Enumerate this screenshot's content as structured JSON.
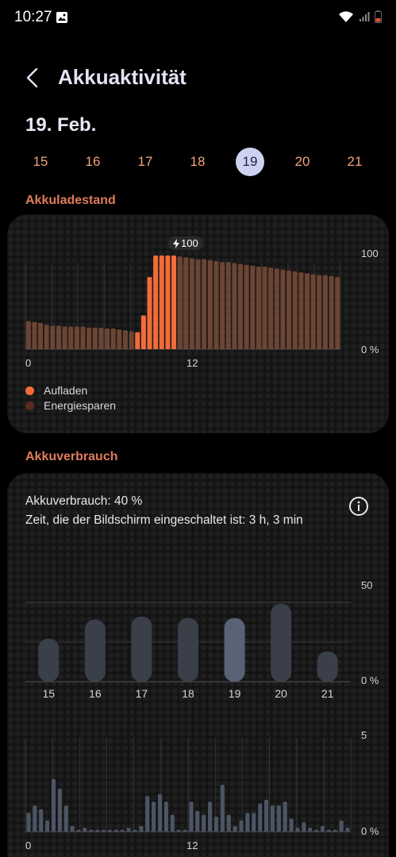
{
  "status": {
    "time": "10:27"
  },
  "header": {
    "title": "Akkuaktivität"
  },
  "date_title": "19. Feb.",
  "days": [
    {
      "label": "15",
      "selected": false
    },
    {
      "label": "16",
      "selected": false
    },
    {
      "label": "17",
      "selected": false
    },
    {
      "label": "18",
      "selected": false
    },
    {
      "label": "19",
      "selected": true
    },
    {
      "label": "20",
      "selected": false
    },
    {
      "label": "21",
      "selected": false
    }
  ],
  "battery_level": {
    "section_label": "Akkuladestand",
    "peak_badge": "100",
    "y_tick_top": "100",
    "y_tick_bottom": "0 %",
    "x_tick_start": "0",
    "x_tick_mid": "12",
    "legend": [
      {
        "label": "Aufladen",
        "color": "#f26b3a"
      },
      {
        "label": "Energiesparen",
        "color": "#5a2a22"
      }
    ]
  },
  "usage": {
    "section_label": "Akkuverbrauch",
    "usage_text": "Akkuverbrauch: 40 %",
    "screen_time_text": "Zeit, die der Bildschirm eingeschaltet ist: 3 h, 3 min",
    "y_tick_top": "50",
    "y_tick_bottom": "0 %",
    "hourly_y_tick_top": "5",
    "hourly_y_tick_bottom": "0 %",
    "hourly_x_tick_start": "0",
    "hourly_x_tick_mid": "12"
  },
  "chart_data": [
    {
      "type": "bar",
      "title": "Akkuladestand",
      "xlabel": "",
      "ylabel": "",
      "ylim": [
        0,
        100
      ],
      "x_ticks": [
        "0",
        "12"
      ],
      "series": [
        {
          "name": "Akkuladestand",
          "values": [
            30,
            29,
            28,
            26,
            25,
            25,
            24,
            24,
            24,
            24,
            23,
            23,
            23,
            22,
            22,
            21,
            20,
            19,
            18,
            36,
            77,
            100,
            100,
            100,
            100,
            99,
            98,
            97,
            96,
            96,
            95,
            94,
            93,
            93,
            92,
            91,
            90,
            89,
            88,
            88,
            87,
            86,
            85,
            84,
            83,
            82,
            81,
            80,
            79,
            79,
            78,
            77
          ]
        }
      ],
      "charging_range": [
        18,
        24
      ]
    },
    {
      "type": "bar",
      "title": "Akkuverbrauch",
      "xlabel": "",
      "ylabel": "",
      "ylim": [
        0,
        60
      ],
      "categories": [
        "15",
        "16",
        "17",
        "18",
        "19",
        "20",
        "21"
      ],
      "values": [
        27,
        39,
        41,
        40,
        40,
        49,
        19
      ],
      "highlight_index": 4
    },
    {
      "type": "bar",
      "title": "",
      "xlabel": "",
      "ylabel": "",
      "ylim": [
        0,
        5
      ],
      "x_ticks": [
        "0",
        "12"
      ],
      "values": [
        1.0,
        1.4,
        1.2,
        0.6,
        2.8,
        2.3,
        1.4,
        0.3,
        0.1,
        0.2,
        0.1,
        0.1,
        0.1,
        0.1,
        0.1,
        0.1,
        0.2,
        0.1,
        0.3,
        1.9,
        1.6,
        2.0,
        1.6,
        0.9,
        0.1,
        0.1,
        1.6,
        1.1,
        0.9,
        1.6,
        0.8,
        2.5,
        0.9,
        0.3,
        0.6,
        1.0,
        1.0,
        1.5,
        1.7,
        1.4,
        1.4,
        1.6,
        0.7,
        0.2,
        0.5,
        0.2,
        0.1,
        0.3,
        0.1,
        0.1,
        0.6,
        0.2
      ]
    }
  ]
}
